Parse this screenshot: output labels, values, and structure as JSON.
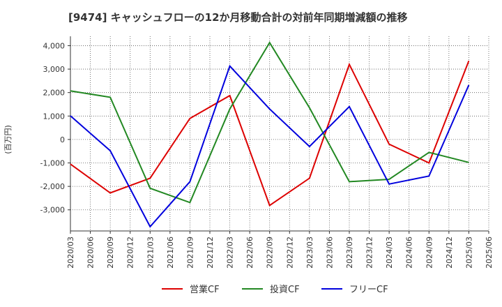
{
  "chart_data": {
    "type": "line",
    "title": "[9474]  キャッシュフローの12か月移動合計の対前年同期増減額の推移",
    "ylabel": "(百万円)",
    "xlabel": "",
    "ylim": [
      -3900,
      4400
    ],
    "yticks": [
      4000,
      3000,
      2000,
      1000,
      0,
      -1000,
      -2000,
      -3000
    ],
    "ytick_labels": [
      "4,000",
      "3,000",
      "2,000",
      "1,000",
      "0",
      "-1,000",
      "-2,000",
      "-3,000"
    ],
    "categories": [
      "2020/03",
      "2020/06",
      "2020/09",
      "2020/12",
      "2021/03",
      "2021/06",
      "2021/09",
      "2021/12",
      "2022/03",
      "2022/06",
      "2022/09",
      "2022/12",
      "2023/03",
      "2023/06",
      "2023/09",
      "2023/12",
      "2024/03",
      "2024/06",
      "2024/09",
      "2024/12",
      "2025/03",
      "2025/06"
    ],
    "grid": true,
    "legend_position": "bottom",
    "series": [
      {
        "name": "営業CF",
        "color": "#dd0000",
        "points": [
          {
            "x": "2020/03",
            "y": -1050
          },
          {
            "x": "2020/09",
            "y": -2280
          },
          {
            "x": "2021/03",
            "y": -1650
          },
          {
            "x": "2021/09",
            "y": 900
          },
          {
            "x": "2022/03",
            "y": 1870
          },
          {
            "x": "2022/09",
            "y": -2810
          },
          {
            "x": "2023/03",
            "y": -1650
          },
          {
            "x": "2023/09",
            "y": 3200
          },
          {
            "x": "2024/03",
            "y": -200
          },
          {
            "x": "2024/09",
            "y": -1000
          },
          {
            "x": "2025/03",
            "y": 3350
          }
        ]
      },
      {
        "name": "投資CF",
        "color": "#228822",
        "points": [
          {
            "x": "2020/03",
            "y": 2070
          },
          {
            "x": "2020/09",
            "y": 1800
          },
          {
            "x": "2021/03",
            "y": -2080
          },
          {
            "x": "2021/09",
            "y": -2690
          },
          {
            "x": "2022/03",
            "y": 1300
          },
          {
            "x": "2022/09",
            "y": 4130
          },
          {
            "x": "2023/03",
            "y": 1350
          },
          {
            "x": "2023/09",
            "y": -1800
          },
          {
            "x": "2024/03",
            "y": -1700
          },
          {
            "x": "2024/09",
            "y": -550
          },
          {
            "x": "2025/03",
            "y": -980
          }
        ]
      },
      {
        "name": "フリーCF",
        "color": "#0000dd",
        "points": [
          {
            "x": "2020/03",
            "y": 1010
          },
          {
            "x": "2020/09",
            "y": -480
          },
          {
            "x": "2021/03",
            "y": -3720
          },
          {
            "x": "2021/09",
            "y": -1800
          },
          {
            "x": "2022/03",
            "y": 3130
          },
          {
            "x": "2022/09",
            "y": 1300
          },
          {
            "x": "2023/03",
            "y": -300
          },
          {
            "x": "2023/09",
            "y": 1400
          },
          {
            "x": "2024/03",
            "y": -1900
          },
          {
            "x": "2024/09",
            "y": -1560
          },
          {
            "x": "2025/03",
            "y": 2320
          }
        ]
      }
    ]
  }
}
